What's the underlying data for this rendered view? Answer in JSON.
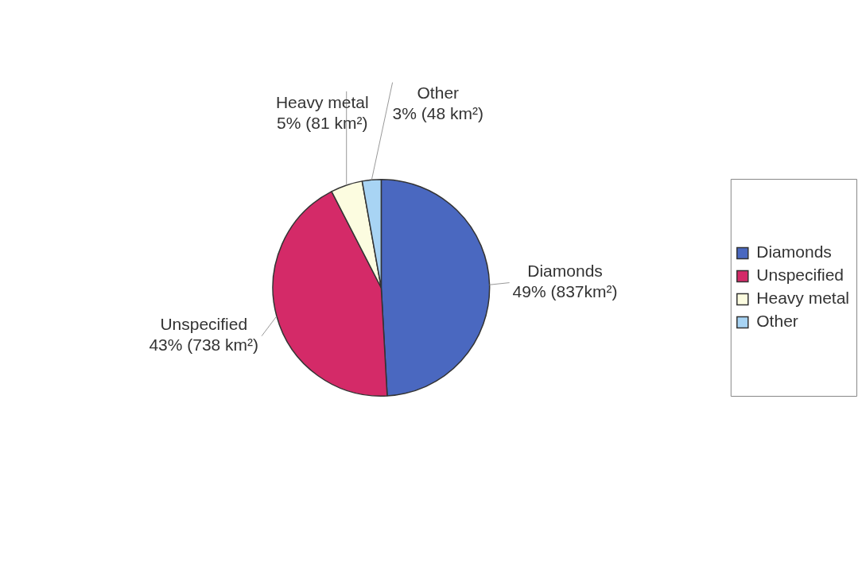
{
  "chart_data": {
    "type": "pie",
    "categories": [
      "Diamonds",
      "Unspecified",
      "Heavy metal",
      "Other"
    ],
    "values": [
      837,
      738,
      81,
      48
    ],
    "value_labels": [
      "49% (837km²)",
      "43% (738 km²)",
      "5% (81 km²)",
      "3% (48 km²)"
    ],
    "colors": [
      "#4a68c0",
      "#d42a68",
      "#fcfce0",
      "#a8d4f4"
    ],
    "legend": "right"
  }
}
